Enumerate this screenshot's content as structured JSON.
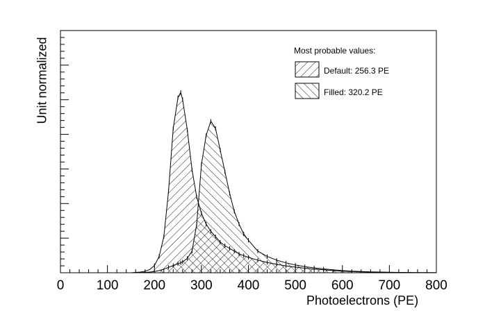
{
  "chart_data": {
    "type": "area",
    "xlabel": "Photoelectrons (PE)",
    "ylabel": "Unit normalized",
    "xlim": [
      0,
      800
    ],
    "ylim": [
      0,
      1.0
    ],
    "x_ticks": [
      "0",
      "100",
      "200",
      "300",
      "400",
      "500",
      "600",
      "700",
      "800"
    ],
    "grid": false,
    "legend": {
      "title": "Most probable values:",
      "placement": "top-right",
      "entries": [
        "Default: 256.3 PE",
        "Filled: 320.2 PE"
      ]
    },
    "x": [
      150,
      160,
      170,
      180,
      190,
      200,
      210,
      220,
      230,
      240,
      250,
      256,
      260,
      270,
      280,
      290,
      300,
      310,
      320,
      330,
      340,
      350,
      360,
      370,
      380,
      390,
      400,
      420,
      440,
      460,
      480,
      500,
      520,
      540,
      560,
      580,
      600,
      620,
      640,
      660,
      680,
      700,
      720,
      740,
      760,
      780,
      800
    ],
    "series": [
      {
        "name": "Default: 256.3 PE",
        "hatch": "back-diagonal",
        "values": [
          0,
          0.002,
          0.004,
          0.008,
          0.018,
          0.04,
          0.09,
          0.2,
          0.45,
          0.8,
          0.97,
          1.0,
          0.96,
          0.79,
          0.57,
          0.42,
          0.33,
          0.27,
          0.23,
          0.2,
          0.17,
          0.15,
          0.135,
          0.12,
          0.105,
          0.095,
          0.085,
          0.07,
          0.057,
          0.047,
          0.038,
          0.031,
          0.025,
          0.02,
          0.016,
          0.012,
          0.009,
          0.007,
          0.005,
          0.004,
          0.003,
          0.002,
          0.001,
          0.001,
          0.0005,
          0.0003,
          0.0002
        ]
      },
      {
        "name": "Filled: 320.2 PE",
        "hatch": "forward-diagonal",
        "values": [
          0,
          0,
          0.001,
          0.002,
          0.004,
          0.007,
          0.012,
          0.02,
          0.03,
          0.04,
          0.05,
          0.055,
          0.06,
          0.08,
          0.12,
          0.27,
          0.6,
          0.76,
          0.84,
          0.8,
          0.68,
          0.56,
          0.44,
          0.34,
          0.27,
          0.215,
          0.18,
          0.12,
          0.09,
          0.07,
          0.055,
          0.043,
          0.034,
          0.027,
          0.021,
          0.016,
          0.012,
          0.009,
          0.007,
          0.005,
          0.004,
          0.003,
          0.002,
          0.0015,
          0.001,
          0.0006,
          0.0003
        ]
      }
    ]
  }
}
